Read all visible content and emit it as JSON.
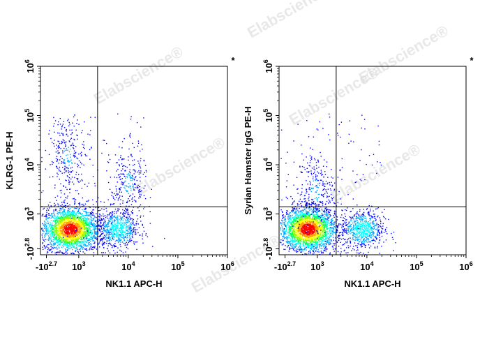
{
  "watermark": "Elabscience®",
  "chart_data": [
    {
      "type": "scatter",
      "subtype": "flow-cytometry-density-dot-plot",
      "corner_marker": "*",
      "xlabel": "NK1.1 APC-H",
      "ylabel": "KLRG-1 PE-H",
      "x_scale": "biexponential",
      "y_scale": "biexponential",
      "x_tick_labels": [
        {
          "base": "-10",
          "exp": "2.7"
        },
        {
          "base": "10",
          "exp": "3"
        },
        {
          "base": "10",
          "exp": "4"
        },
        {
          "base": "10",
          "exp": "5"
        },
        {
          "base": "10",
          "exp": "6"
        }
      ],
      "y_tick_labels": [
        {
          "base": "-10",
          "exp": "2.8"
        },
        {
          "base": "10",
          "exp": "3"
        },
        {
          "base": "10",
          "exp": "4"
        },
        {
          "base": "10",
          "exp": "5"
        },
        {
          "base": "10",
          "exp": "6"
        }
      ],
      "quadrant_gate": {
        "x": 2400,
        "y": 1400
      },
      "populations": [
        {
          "x_center": 600,
          "y_center": 300,
          "density": "high"
        },
        {
          "x_center": 6000,
          "y_center": 300,
          "density": "medium"
        },
        {
          "x_center": 10000,
          "y_center": 4000,
          "density": "low"
        },
        {
          "x_center": 500,
          "y_center": 15000,
          "density": "low"
        }
      ],
      "colormap": [
        "#0000ff",
        "#00ffff",
        "#00ff00",
        "#ffff00",
        "#ff8000",
        "#ff0000"
      ]
    },
    {
      "type": "scatter",
      "subtype": "flow-cytometry-density-dot-plot",
      "corner_marker": "*",
      "xlabel": "NK1.1 APC-H",
      "ylabel": "Syrian Hamster IgG PE-H",
      "x_scale": "biexponential",
      "y_scale": "biexponential",
      "x_tick_labels": [
        {
          "base": "-10",
          "exp": "2.7"
        },
        {
          "base": "10",
          "exp": "3"
        },
        {
          "base": "10",
          "exp": "4"
        },
        {
          "base": "10",
          "exp": "5"
        },
        {
          "base": "10",
          "exp": "6"
        }
      ],
      "y_tick_labels": [
        {
          "base": "-10",
          "exp": "2.8"
        },
        {
          "base": "10",
          "exp": "3"
        },
        {
          "base": "10",
          "exp": "4"
        },
        {
          "base": "10",
          "exp": "5"
        },
        {
          "base": "10",
          "exp": "6"
        }
      ],
      "quadrant_gate": {
        "x": 2400,
        "y": 1400
      },
      "populations": [
        {
          "x_center": 550,
          "y_center": 300,
          "density": "high"
        },
        {
          "x_center": 8000,
          "y_center": 300,
          "density": "medium"
        },
        {
          "x_center": 900,
          "y_center": 3000,
          "density": "low"
        }
      ],
      "colormap": [
        "#0000ff",
        "#00ffff",
        "#00ff00",
        "#ffff00",
        "#ff8000",
        "#ff0000"
      ]
    }
  ]
}
